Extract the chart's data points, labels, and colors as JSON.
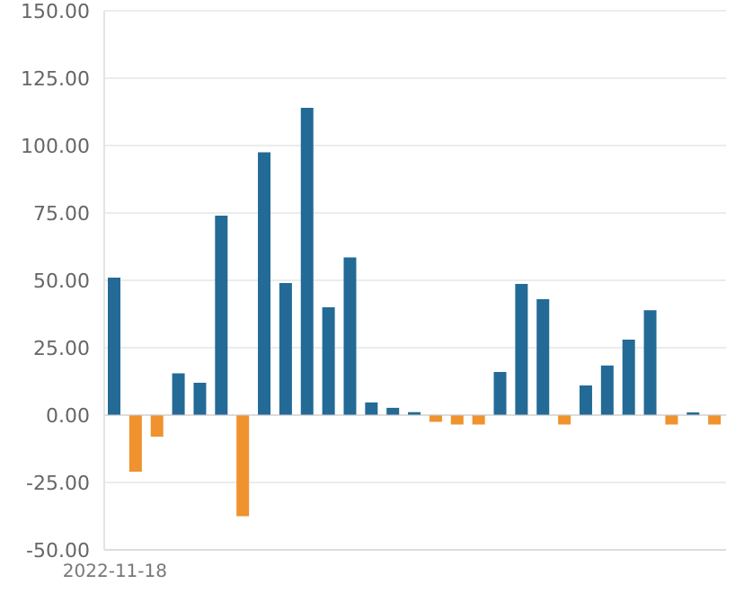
{
  "chart_data": {
    "type": "bar",
    "categories": [
      "2022-11-18",
      null,
      null,
      null,
      null,
      null,
      null,
      null,
      null,
      null,
      null,
      null,
      null,
      null,
      null,
      null,
      null,
      null,
      null,
      null,
      null,
      null,
      null,
      null,
      null,
      null,
      null,
      null,
      null
    ],
    "values": [
      51,
      -21,
      -8,
      15.5,
      12,
      74,
      -37.5,
      97.5,
      49,
      114,
      40,
      58.5,
      4.7,
      2.7,
      1.1,
      -2.5,
      -3.5,
      -3.5,
      16,
      48.7,
      43,
      -3.5,
      11,
      18.4,
      28,
      38.9,
      -3.5,
      1,
      -3.5
    ],
    "colors": [
      "#236a96",
      "#f0922e",
      "#f0922e",
      "#236a96",
      "#236a96",
      "#236a96",
      "#f0922e",
      "#236a96",
      "#236a96",
      "#236a96",
      "#236a96",
      "#236a96",
      "#236a96",
      "#236a96",
      "#236a96",
      "#f0922e",
      "#f0922e",
      "#f0922e",
      "#236a96",
      "#236a96",
      "#236a96",
      "#f0922e",
      "#236a96",
      "#236a96",
      "#236a96",
      "#236a96",
      "#f0922e",
      "#236a96",
      "#f0922e"
    ],
    "ylim": [
      -50,
      150
    ],
    "yticks": [
      {
        "value": -50,
        "label": "-50.00"
      },
      {
        "value": -25,
        "label": "-25.00"
      },
      {
        "value": 0,
        "label": "0.00"
      },
      {
        "value": 25,
        "label": "25.00"
      },
      {
        "value": 50,
        "label": "50.00"
      },
      {
        "value": 75,
        "label": "75.00"
      },
      {
        "value": 100,
        "label": "100.00"
      },
      {
        "value": 125,
        "label": "125.00"
      },
      {
        "value": 150,
        "label": "150.00"
      }
    ],
    "grid": "y"
  }
}
